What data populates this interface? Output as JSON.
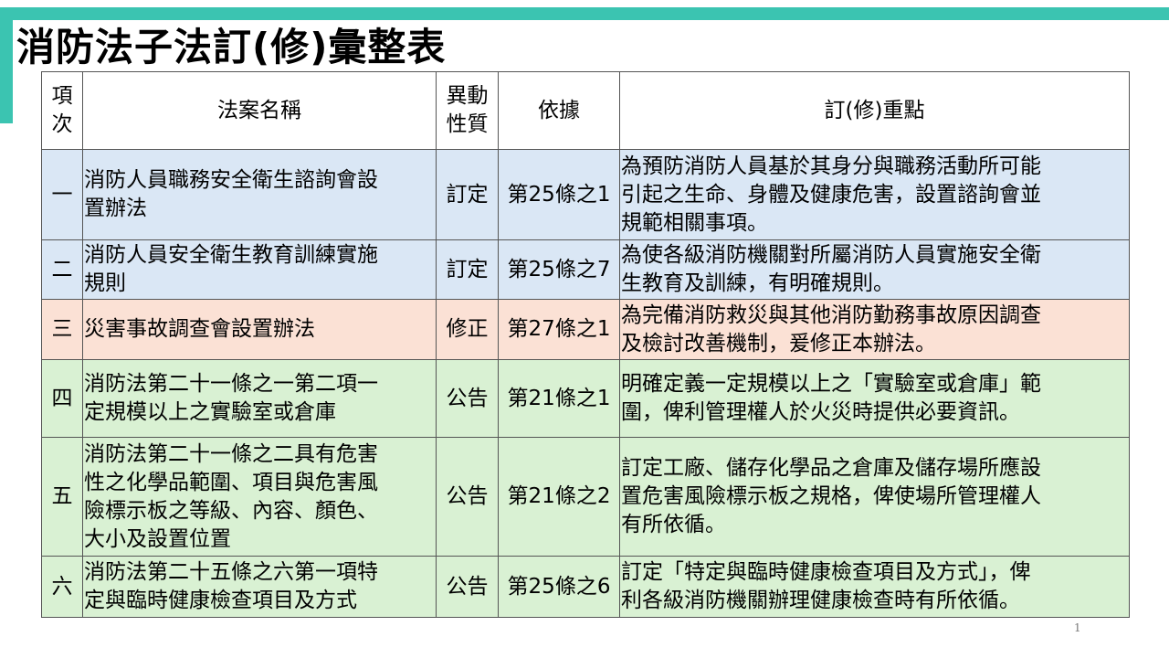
{
  "colors": {
    "accent": "#3bc4b1",
    "row_blue": "#dae7f5",
    "row_peach": "#fbe1d5",
    "row_green": "#d9f1d3"
  },
  "title": "消防法子法訂(修)彙整表",
  "headers": {
    "no": [
      "項",
      "次"
    ],
    "name": [
      "法案名稱"
    ],
    "type": [
      "異動",
      "性質"
    ],
    "basis": [
      "依據"
    ],
    "focus": [
      "訂(修)重點"
    ]
  },
  "rows": [
    {
      "no": "一",
      "name": [
        "消防人員職務安全衛生諮詢會設",
        "置辦法"
      ],
      "type": "訂定",
      "basis": "第25條之1",
      "focus": [
        "為預防消防人員基於其身分與職務活動所可能",
        "引起之生命、身體及健康危害，設置諮詢會並",
        "規範相關事項。"
      ]
    },
    {
      "no": "二",
      "name": [
        "消防人員安全衛生教育訓練實施",
        "規則"
      ],
      "type": "訂定",
      "basis": "第25條之7",
      "focus": [
        "為使各級消防機關對所屬消防人員實施安全衛",
        "生教育及訓練，有明確規則。"
      ]
    },
    {
      "no": "三",
      "name": [
        "災害事故調查會設置辦法"
      ],
      "type": "修正",
      "basis": "第27條之1",
      "focus": [
        "為完備消防救災與其他消防勤務事故原因調查",
        "及檢討改善機制，爰修正本辦法。"
      ]
    },
    {
      "no": "四",
      "name": [
        "消防法第二十一條之一第二項一",
        "定規模以上之實驗室或倉庫"
      ],
      "type": "公告",
      "basis": "第21條之1",
      "focus": [
        "明確定義一定規模以上之「實驗室或倉庫」範",
        "圍，俾利管理權人於火災時提供必要資訊。"
      ]
    },
    {
      "no": "五",
      "name": [
        "消防法第二十一條之二具有危害",
        "性之化學品範圍、項目與危害風",
        "險標示板之等級、內容、顏色、",
        "大小及設置位置"
      ],
      "type": "公告",
      "basis": "第21條之2",
      "focus": [
        "訂定工廠、儲存化學品之倉庫及儲存場所應設",
        "置危害風險標示板之規格，俾使場所管理權人",
        "有所依循。"
      ]
    },
    {
      "no": "六",
      "name": [
        "消防法第二十五條之六第一項特",
        "定與臨時健康檢查項目及方式"
      ],
      "type": "公告",
      "basis": "第25條之6",
      "focus": [
        "訂定「特定與臨時健康檢查項目及方式」，俾",
        "利各級消防機關辦理健康檢查時有所依循。"
      ]
    }
  ],
  "page_number": "1"
}
